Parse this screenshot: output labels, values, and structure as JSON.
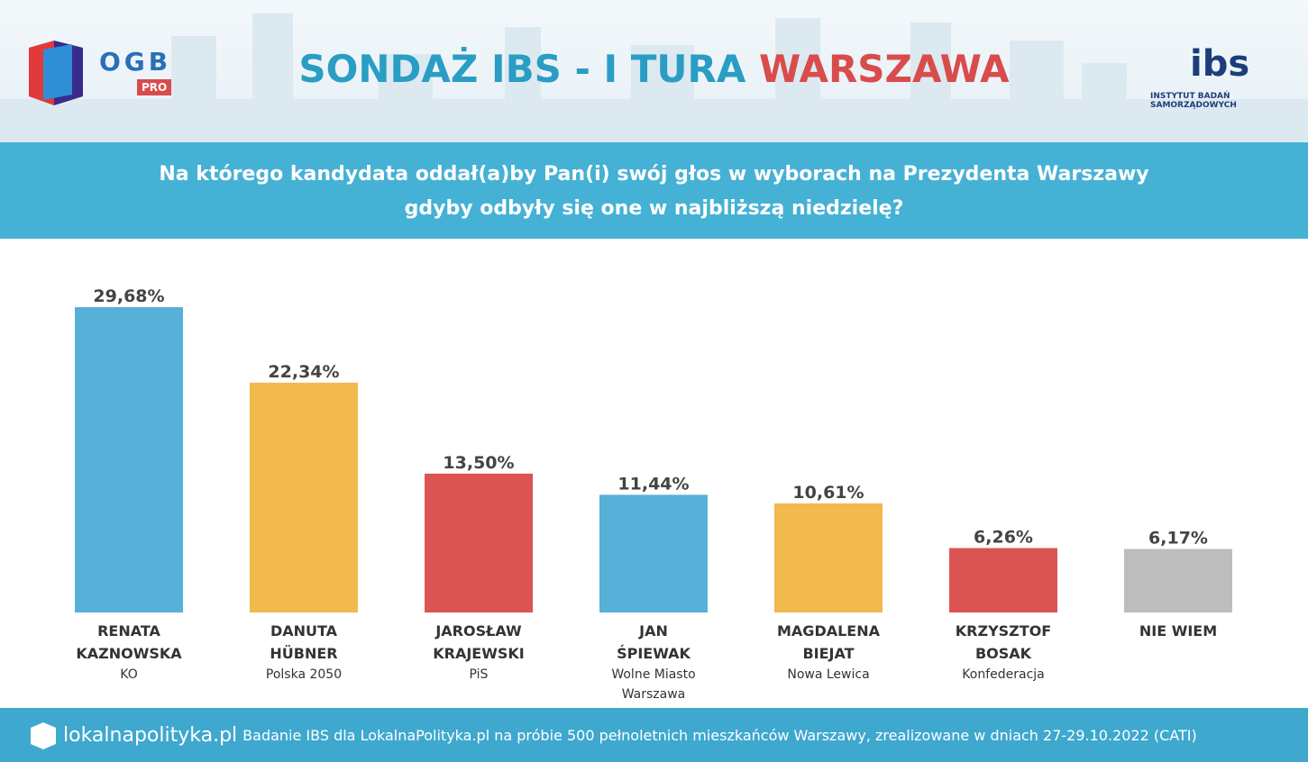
{
  "header": {
    "logo_left": "OGB",
    "logo_left_badge": "PRO",
    "title": "SONDAŻ IBS - I TURA",
    "title_highlight": "WARSZAWA",
    "logo_right": "ibs",
    "logo_right_caption": "INSTYTUT BADAŃ SAMORZĄDOWYCH"
  },
  "question": [
    "Na którego kandydata oddał(a)by Pan(i) swój głos w wyborach na Prezydenta Warszawy",
    "gdyby odbyły się one w najbliższą niedzielę?"
  ],
  "chart_data": {
    "type": "bar",
    "categories": [
      "RENATA KAZNOWSKA",
      "DANUTA HÜBNER",
      "JAROSŁAW KRAJEWSKI",
      "JAN ŚPIEWAK",
      "MAGDALENA BIEJAT",
      "KRZYSZTOF BOSAK",
      "NIE WIEM"
    ],
    "parties": [
      "KO",
      "Polska 2050",
      "PiS",
      "Wolne Miasto Warszawa",
      "Nowa Lewica",
      "Konfederacja",
      null
    ],
    "values": [
      29.68,
      22.34,
      13.5,
      11.44,
      10.61,
      6.26,
      6.17
    ],
    "value_labels": [
      "29,68%",
      "22,34%",
      "13,50%",
      "11,44%",
      "10,61%",
      "6,26%",
      "6,17%"
    ],
    "colors": [
      "#56b0d8",
      "#f2b94e",
      "#dc5353",
      "#56b0d8",
      "#f2b94e",
      "#dc5353",
      "#bdbdbd"
    ]
  },
  "footer": {
    "brand": "lokalnapolityka.pl",
    "note": "Badanie IBS dla LokalnaPolityka.pl na próbie 500 pełnoletnich mieszkańców Warszawy, zrealizowane w dniach 27-29.10.2022 (CATI)"
  }
}
